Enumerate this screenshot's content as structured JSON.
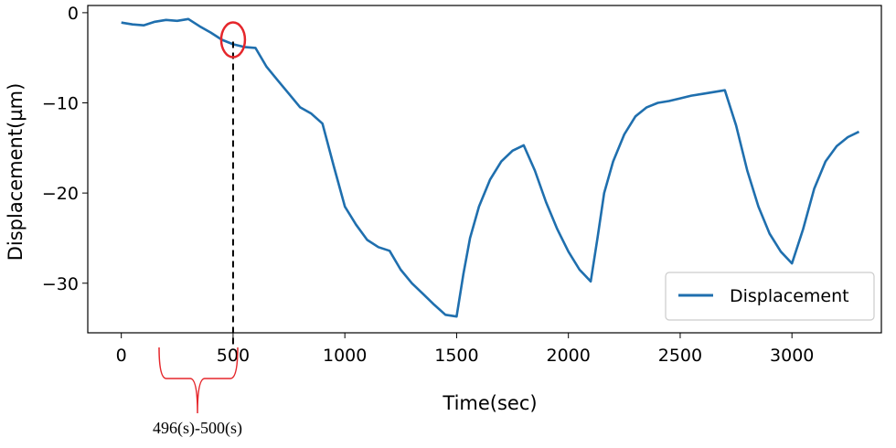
{
  "chart_data": {
    "type": "line",
    "title": "",
    "xlabel": "Time(sec)",
    "ylabel": "Displacement(µm)",
    "xlim": [
      -150,
      3400
    ],
    "ylim": [
      -35.5,
      0.8
    ],
    "xticks": [
      0,
      500,
      1000,
      1500,
      2000,
      2500,
      3000
    ],
    "yticks": [
      0,
      -10,
      -20,
      -30
    ],
    "xtick_labels": [
      "0",
      "500",
      "1000",
      "1500",
      "2000",
      "2500",
      "3000"
    ],
    "ytick_labels": [
      "0",
      "−10",
      "−20",
      "−30"
    ],
    "grid": false,
    "legend_position": "lower-right",
    "series": [
      {
        "name": "Displacement",
        "color": "#1f6fae",
        "x": [
          0,
          50,
          100,
          150,
          200,
          250,
          300,
          350,
          400,
          450,
          500,
          550,
          600,
          650,
          700,
          750,
          800,
          850,
          900,
          950,
          1000,
          1050,
          1100,
          1150,
          1200,
          1250,
          1300,
          1350,
          1400,
          1450,
          1500,
          1530,
          1560,
          1600,
          1650,
          1700,
          1750,
          1800,
          1850,
          1900,
          1950,
          2000,
          2050,
          2100,
          2130,
          2160,
          2200,
          2250,
          2300,
          2350,
          2400,
          2450,
          2500,
          2550,
          2600,
          2650,
          2700,
          2750,
          2800,
          2850,
          2900,
          2950,
          3000,
          3050,
          3100,
          3150,
          3200,
          3250,
          3300
        ],
        "y": [
          -1.1,
          -1.3,
          -1.4,
          -1.0,
          -0.8,
          -0.9,
          -0.7,
          -1.5,
          -2.2,
          -3.0,
          -3.5,
          -3.8,
          -3.9,
          -6.0,
          -7.5,
          -9.0,
          -10.5,
          -11.2,
          -12.3,
          -17.0,
          -21.5,
          -23.5,
          -25.2,
          -26.0,
          -26.4,
          -28.5,
          -30.0,
          -31.2,
          -32.4,
          -33.5,
          -33.7,
          -29.0,
          -25.0,
          -21.5,
          -18.5,
          -16.5,
          -15.3,
          -14.7,
          -17.5,
          -21.0,
          -24.0,
          -26.5,
          -28.5,
          -29.8,
          -25.0,
          -20.0,
          -16.5,
          -13.5,
          -11.5,
          -10.5,
          -10.0,
          -9.8,
          -9.5,
          -9.2,
          -9.0,
          -8.8,
          -8.6,
          -12.5,
          -17.5,
          -21.5,
          -24.5,
          -26.5,
          -27.8,
          -24.0,
          -19.5,
          -16.5,
          -14.8,
          -13.8,
          -13.2
        ]
      }
    ],
    "annotations": {
      "bracket_label": "496(s)-500(s)",
      "marker_time": 500
    }
  }
}
